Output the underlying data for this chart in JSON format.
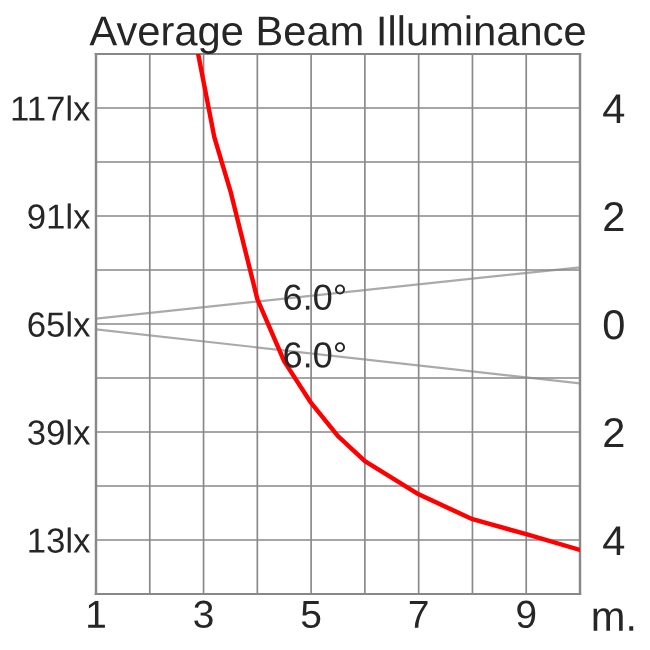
{
  "chart_data": {
    "type": "line",
    "title": "Average Beam Illuminance",
    "xlabel": "m.",
    "series": [
      {
        "color": "#ff0000",
        "x": [
          2.9,
          3.2,
          3.5,
          4,
          4.5,
          5,
          5.5,
          6,
          7,
          8,
          9,
          10
        ],
        "values": [
          130,
          110,
          97,
          71,
          56,
          46,
          38,
          32,
          24,
          18,
          14.4,
          10.6
        ]
      },
      {
        "color": "#aaaaaa",
        "axis": "y2",
        "x": [
          1,
          10
        ],
        "values": [
          0.1,
          1.05
        ]
      },
      {
        "color": "#aaaaaa",
        "axis": "y2",
        "x": [
          1,
          10
        ],
        "values": [
          -0.1,
          -1.1
        ]
      }
    ],
    "xlim": [
      1,
      10
    ],
    "xticks": [
      1,
      {
        "value": 2,
        "label": null
      },
      3,
      {
        "value": 4,
        "label": null
      },
      5,
      {
        "value": 6,
        "label": null
      },
      7,
      {
        "value": 8,
        "label": null
      },
      9,
      {
        "value": 10,
        "label": null
      }
    ],
    "ylim": [
      0,
      130
    ],
    "yticks": [
      {
        "value": 0,
        "label": null
      },
      {
        "value": 13,
        "label": "13lx"
      },
      {
        "value": 26,
        "label": null
      },
      {
        "value": 39,
        "label": "39lx"
      },
      {
        "value": 52,
        "label": null
      },
      {
        "value": 65,
        "label": "65lx"
      },
      {
        "value": 78,
        "label": null
      },
      {
        "value": 91,
        "label": "91lx"
      },
      {
        "value": 104,
        "label": null
      },
      {
        "value": 117,
        "label": "117lx"
      },
      {
        "value": 130,
        "label": null
      }
    ],
    "y2lim": [
      -5,
      5
    ],
    "y2ticks": [
      {
        "value": -4,
        "label": "4"
      },
      {
        "value": -2,
        "label": "2"
      },
      0,
      2,
      4
    ],
    "annotations": [
      {
        "text": "6.0°",
        "x": 5.07,
        "y": 70.7
      },
      {
        "text": "6.0°",
        "x": 5.07,
        "y": 56.8
      }
    ],
    "grid": true,
    "legend": false,
    "marker": "none",
    "line_style": "solid"
  }
}
